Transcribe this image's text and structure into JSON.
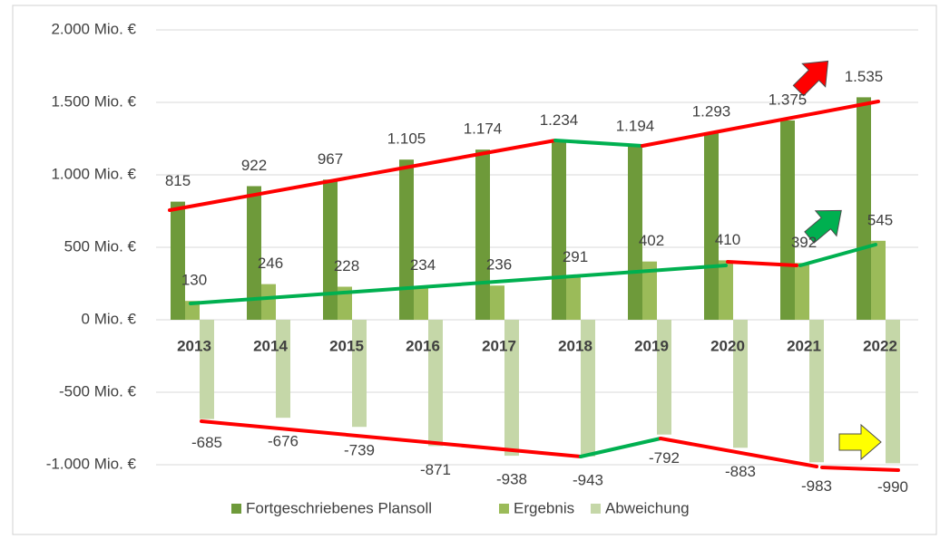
{
  "chart_data": {
    "type": "bar",
    "categories": [
      "2013",
      "2014",
      "2015",
      "2016",
      "2017",
      "2018",
      "2019",
      "2020",
      "2021",
      "2022"
    ],
    "series": [
      {
        "name": "Fortgeschriebenes Plansoll",
        "color": "#6e9a3a",
        "values": [
          815,
          922,
          967,
          1105,
          1174,
          1234,
          1194,
          1293,
          1375,
          1535
        ],
        "value_labels": [
          "815",
          "922",
          "967",
          "1.105",
          "1.174",
          "1.234",
          "1.194",
          "1.293",
          "1.375",
          "1.535"
        ]
      },
      {
        "name": "Ergebnis",
        "color": "#9bbb59",
        "values": [
          130,
          246,
          228,
          234,
          236,
          291,
          402,
          410,
          392,
          545
        ]
      },
      {
        "name": "Abweichung",
        "color": "#c5d7a8",
        "values": [
          -685,
          -676,
          -739,
          -871,
          -938,
          -943,
          -792,
          -883,
          -983,
          -990
        ]
      }
    ],
    "ylim": [
      -1000,
      2000
    ],
    "yticks": [
      {
        "value": -1000,
        "label": "-1.000 Mio. €"
      },
      {
        "value": -500,
        "label": "-500 Mio. €"
      },
      {
        "value": 0,
        "label": "0 Mio. €"
      },
      {
        "value": 500,
        "label": "500 Mio. €"
      },
      {
        "value": 1000,
        "label": "1.000 Mio. €"
      },
      {
        "value": 1500,
        "label": "1.500 Mio. €"
      },
      {
        "value": 2000,
        "label": "2.000 Mio. €"
      }
    ],
    "grid": true
  }
}
